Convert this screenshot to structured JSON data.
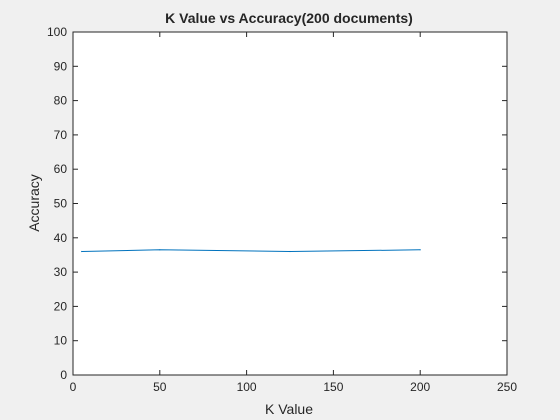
{
  "chart_data": {
    "type": "line",
    "title": "K Value vs Accuracy(200 documents)",
    "xlabel": "K Value",
    "ylabel": "Accuracy",
    "xlim": [
      0,
      250
    ],
    "ylim": [
      0,
      100
    ],
    "xticks": [
      "0",
      "50",
      "100",
      "150",
      "200",
      "250"
    ],
    "yticks": [
      "0",
      "10",
      "20",
      "30",
      "40",
      "50",
      "60",
      "70",
      "80",
      "90",
      "100"
    ],
    "grid": false,
    "series": [
      {
        "color": "#0072BD",
        "x": [
          5,
          50,
          125,
          200
        ],
        "y": [
          36.0,
          36.5,
          36.0,
          36.5
        ]
      }
    ]
  }
}
